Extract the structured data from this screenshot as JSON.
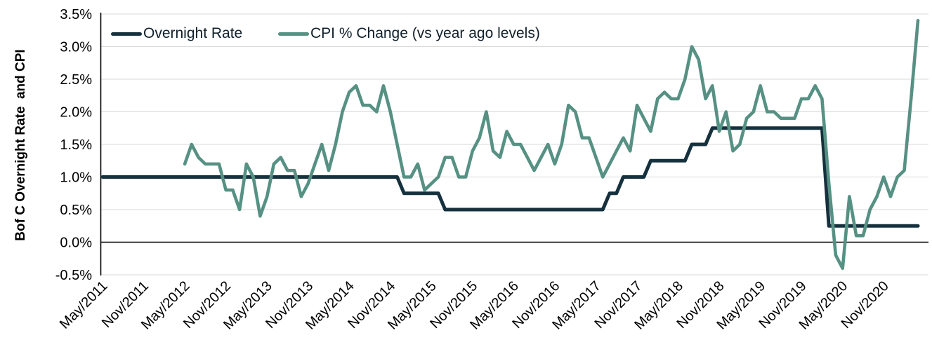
{
  "y_axis_title": "Bof C Overnight Rate  and CPI",
  "legend": {
    "items": [
      {
        "label": "Overnight Rate",
        "color": "#16313e"
      },
      {
        "label": "CPI % Change (vs year ago levels)",
        "color": "#569183"
      }
    ]
  },
  "colors": {
    "background": "#ffffff",
    "gridline": "#d9d9d9",
    "zero_line": "#000000",
    "axis_line": "#000000",
    "tick_text": "#000000"
  },
  "chart_data": {
    "type": "line",
    "title": "",
    "xlabel": "",
    "ylabel": "Bof C Overnight Rate  and CPI",
    "ylim": [
      -0.5,
      3.5
    ],
    "y_tick_step": 0.5,
    "y_tick_labels": [
      "3.5%",
      "3.0%",
      "2.5%",
      "2.0%",
      "1.5%",
      "1.0%",
      "0.5%",
      "0.0%",
      "-0.5%"
    ],
    "grid": "horizontal",
    "legend_position": "top-left-inside",
    "x": {
      "freq": "monthly",
      "start": "May/2011",
      "end": "Apr/2021",
      "total_months": 120,
      "tick_every_months": 6,
      "tick_labels": [
        "May/2011",
        "Nov/2011",
        "May/2012",
        "Nov/2012",
        "May/2013",
        "Nov/2013",
        "May/2014",
        "Nov/2014",
        "May/2015",
        "Nov/2015",
        "May/2016",
        "Nov/2016",
        "May/2017",
        "Nov/2017",
        "May/2018",
        "Nov/2018",
        "May/2019",
        "Nov/2019",
        "May/2020",
        "Nov/2020"
      ]
    },
    "series": [
      {
        "name": "Overnight Rate",
        "color": "#16313e",
        "start": "May/2011",
        "start_index": 0,
        "values": [
          1,
          1,
          1,
          1,
          1,
          1,
          1,
          1,
          1,
          1,
          1,
          1,
          1,
          1,
          1,
          1,
          1,
          1,
          1,
          1,
          1,
          1,
          1,
          1,
          1,
          1,
          1,
          1,
          1,
          1,
          1,
          1,
          1,
          1,
          1,
          1,
          1,
          1,
          1,
          1,
          1,
          1,
          1,
          1,
          0.75,
          0.75,
          0.75,
          0.75,
          0.75,
          0.75,
          0.5,
          0.5,
          0.5,
          0.5,
          0.5,
          0.5,
          0.5,
          0.5,
          0.5,
          0.5,
          0.5,
          0.5,
          0.5,
          0.5,
          0.5,
          0.5,
          0.5,
          0.5,
          0.5,
          0.5,
          0.5,
          0.5,
          0.5,
          0.5,
          0.75,
          0.75,
          1,
          1,
          1,
          1,
          1.25,
          1.25,
          1.25,
          1.25,
          1.25,
          1.25,
          1.5,
          1.5,
          1.5,
          1.75,
          1.75,
          1.75,
          1.75,
          1.75,
          1.75,
          1.75,
          1.75,
          1.75,
          1.75,
          1.75,
          1.75,
          1.75,
          1.75,
          1.75,
          1.75,
          1.75,
          0.25,
          0.25,
          0.25,
          0.25,
          0.25,
          0.25,
          0.25,
          0.25,
          0.25,
          0.25,
          0.25,
          0.25,
          0.25,
          0.25
        ]
      },
      {
        "name": "CPI % Change (vs year ago levels)",
        "color": "#569183",
        "start": "May/2012",
        "start_index": 12,
        "values": [
          1.2,
          1.5,
          1.3,
          1.2,
          1.2,
          1.2,
          0.8,
          0.8,
          0.5,
          1.2,
          1.0,
          0.4,
          0.7,
          1.2,
          1.3,
          1.1,
          1.1,
          0.7,
          0.9,
          1.2,
          1.5,
          1.1,
          1.5,
          2.0,
          2.3,
          2.4,
          2.1,
          2.1,
          2.0,
          2.4,
          2.0,
          1.5,
          1.0,
          1.0,
          1.2,
          0.8,
          0.9,
          1.0,
          1.3,
          1.3,
          1.0,
          1.0,
          1.4,
          1.6,
          2.0,
          1.4,
          1.3,
          1.7,
          1.5,
          1.5,
          1.3,
          1.1,
          1.3,
          1.5,
          1.2,
          1.5,
          2.1,
          2.0,
          1.6,
          1.6,
          1.3,
          1.0,
          1.2,
          1.4,
          1.6,
          1.4,
          2.1,
          1.9,
          1.7,
          2.2,
          2.3,
          2.2,
          2.2,
          2.5,
          3.0,
          2.8,
          2.2,
          2.4,
          1.7,
          2.0,
          1.4,
          1.5,
          1.9,
          2.0,
          2.4,
          2.0,
          2.0,
          1.9,
          1.9,
          1.9,
          2.2,
          2.2,
          2.4,
          2.2,
          0.9,
          -0.2,
          -0.4,
          0.7,
          0.1,
          0.1,
          0.5,
          0.7,
          1.0,
          0.7,
          1.0,
          1.1,
          2.2,
          3.4
        ]
      }
    ]
  }
}
